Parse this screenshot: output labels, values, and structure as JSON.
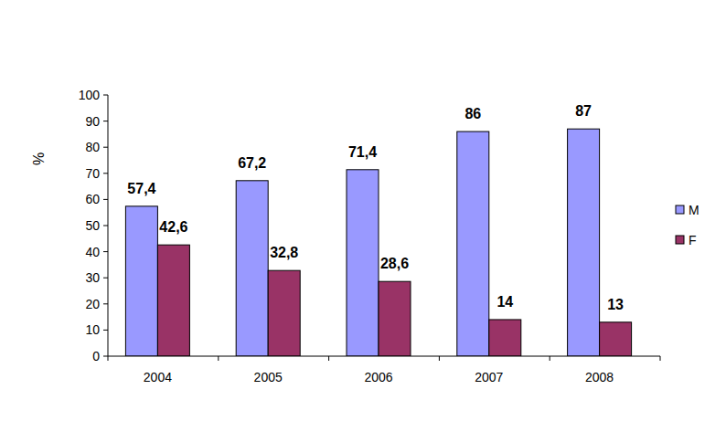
{
  "chart_data": {
    "type": "bar",
    "categories": [
      "2004",
      "2005",
      "2006",
      "2007",
      "2008"
    ],
    "series": [
      {
        "name": "M",
        "color": "#9999ff",
        "values": [
          57.4,
          67.2,
          71.4,
          86,
          87
        ],
        "value_labels": [
          "57,4",
          "67,2",
          "71,4",
          "86",
          "87"
        ]
      },
      {
        "name": "F",
        "color": "#993366",
        "values": [
          42.6,
          32.8,
          28.6,
          14,
          13
        ],
        "value_labels": [
          "42,6",
          "32,8",
          "28,6",
          "14",
          "13"
        ]
      }
    ],
    "y_label": "%",
    "ylim": [
      0,
      100
    ],
    "yticks": [
      0,
      10,
      20,
      30,
      40,
      50,
      60,
      70,
      80,
      90,
      100
    ],
    "grid": false,
    "legend": "right",
    "data_labels": true
  }
}
